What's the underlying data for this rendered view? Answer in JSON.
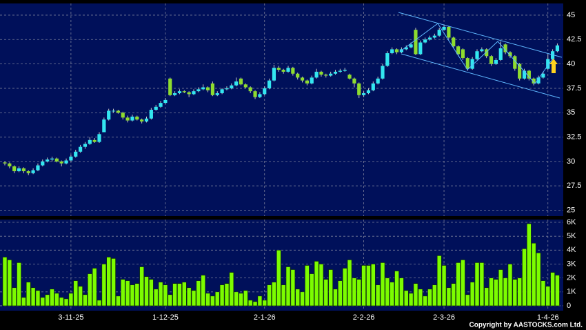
{
  "chart_data": {
    "type": "candlestick",
    "up_color": "#33e6f0",
    "down_color": "#8edc2e",
    "volume_color": "#7cfc00",
    "ylim": [
      24.4,
      46.2
    ],
    "yticks": [
      25,
      27.5,
      30,
      32.5,
      35,
      37.5,
      40,
      42.5,
      45
    ],
    "volume_ylim": [
      -350,
      6200
    ],
    "volume_yticks": [
      0,
      {
        "value": 1000,
        "label": "1K"
      },
      {
        "value": 2000,
        "label": "2K"
      },
      {
        "value": 3000,
        "label": "3K"
      },
      {
        "value": 4000,
        "label": "4K"
      },
      {
        "value": 5000,
        "label": "5K"
      },
      {
        "value": 6000,
        "label": "6K"
      }
    ],
    "grid": true,
    "categories": [
      null,
      null,
      null,
      null,
      null,
      null,
      null,
      null,
      null,
      null,
      null,
      null,
      null,
      null,
      "3-11-25",
      null,
      null,
      null,
      null,
      null,
      null,
      null,
      null,
      null,
      null,
      null,
      null,
      null,
      null,
      null,
      null,
      null,
      null,
      null,
      "1-12-25",
      null,
      null,
      null,
      null,
      null,
      null,
      null,
      null,
      null,
      null,
      null,
      null,
      null,
      null,
      null,
      null,
      null,
      null,
      null,
      null,
      "2-1-26",
      null,
      null,
      null,
      null,
      null,
      null,
      null,
      null,
      null,
      null,
      null,
      null,
      null,
      null,
      null,
      null,
      null,
      null,
      null,
      null,
      "2-2-26",
      null,
      null,
      null,
      null,
      null,
      null,
      null,
      null,
      null,
      null,
      null,
      null,
      null,
      null,
      null,
      null,
      "2-3-26",
      null,
      null,
      null,
      null,
      null,
      null,
      null,
      null,
      null,
      null,
      null,
      null,
      null,
      null,
      null,
      null,
      null,
      null,
      null,
      null,
      null,
      "1-4-26",
      null,
      null
    ],
    "ohlc": [
      [
        29.9,
        30.0,
        29.6,
        29.8
      ],
      [
        29.8,
        29.9,
        29.3,
        29.5
      ],
      [
        29.5,
        29.6,
        28.8,
        29.0
      ],
      [
        29.0,
        29.5,
        28.9,
        29.3
      ],
      [
        29.3,
        29.4,
        28.8,
        29.0
      ],
      [
        29.0,
        29.1,
        28.6,
        28.8
      ],
      [
        28.8,
        29.3,
        28.7,
        29.1
      ],
      [
        29.1,
        29.8,
        29.0,
        29.6
      ],
      [
        29.6,
        30.2,
        29.5,
        30.0
      ],
      [
        30.0,
        30.4,
        29.9,
        30.2
      ],
      [
        30.2,
        30.5,
        30.0,
        30.3
      ],
      [
        30.3,
        30.4,
        29.9,
        30.0
      ],
      [
        30.0,
        30.1,
        29.5,
        29.8
      ],
      [
        29.8,
        30.3,
        29.7,
        30.1
      ],
      [
        30.1,
        30.7,
        30.0,
        30.5
      ],
      [
        30.5,
        31.2,
        30.4,
        31.0
      ],
      [
        31.0,
        31.7,
        30.9,
        31.5
      ],
      [
        31.5,
        32.0,
        31.3,
        31.8
      ],
      [
        31.8,
        32.5,
        31.7,
        32.2
      ],
      [
        32.2,
        32.4,
        31.9,
        32.0
      ],
      [
        32.0,
        33.0,
        31.9,
        32.8
      ],
      [
        33.0,
        34.5,
        33.0,
        34.3
      ],
      [
        34.3,
        35.4,
        34.2,
        35.2
      ],
      [
        35.2,
        35.4,
        35.0,
        35.2
      ],
      [
        35.2,
        35.3,
        34.9,
        35.0
      ],
      [
        35.0,
        35.1,
        34.3,
        34.5
      ],
      [
        34.5,
        34.7,
        34.0,
        34.2
      ],
      [
        34.2,
        34.8,
        34.1,
        34.6
      ],
      [
        34.6,
        34.7,
        34.2,
        34.3
      ],
      [
        34.3,
        34.4,
        33.9,
        34.1
      ],
      [
        34.1,
        34.6,
        34.0,
        34.4
      ],
      [
        34.4,
        35.5,
        34.3,
        35.3
      ],
      [
        35.3,
        35.8,
        35.2,
        35.6
      ],
      [
        35.6,
        36.2,
        35.5,
        36.0
      ],
      [
        36.0,
        36.5,
        35.9,
        36.3
      ],
      [
        38.5,
        38.6,
        36.7,
        36.8
      ],
      [
        36.8,
        37.2,
        36.7,
        37.0
      ],
      [
        37.0,
        37.4,
        36.9,
        37.2
      ],
      [
        37.2,
        37.3,
        37.0,
        37.1
      ],
      [
        37.1,
        37.2,
        36.6,
        36.9
      ],
      [
        36.9,
        37.4,
        36.8,
        37.2
      ],
      [
        37.2,
        37.6,
        37.1,
        37.4
      ],
      [
        37.4,
        37.9,
        37.3,
        37.6
      ],
      [
        37.6,
        37.7,
        37.1,
        37.3
      ],
      [
        38.0,
        38.2,
        36.7,
        36.8
      ],
      [
        36.8,
        37.2,
        36.7,
        37.0
      ],
      [
        37.0,
        37.5,
        36.9,
        37.4
      ],
      [
        37.4,
        37.7,
        37.3,
        37.5
      ],
      [
        37.5,
        38.0,
        37.4,
        37.8
      ],
      [
        37.8,
        38.6,
        37.7,
        38.2
      ],
      [
        38.5,
        38.6,
        37.8,
        37.9
      ],
      [
        37.9,
        38.0,
        37.5,
        37.6
      ],
      [
        37.6,
        37.7,
        37.0,
        37.2
      ],
      [
        37.2,
        37.3,
        36.4,
        36.6
      ],
      [
        36.6,
        37.1,
        36.5,
        36.9
      ],
      [
        36.9,
        37.7,
        36.8,
        37.5
      ],
      [
        37.5,
        38.5,
        37.4,
        38.3
      ],
      [
        38.3,
        39.9,
        38.2,
        39.6
      ],
      [
        39.6,
        39.8,
        39.2,
        39.4
      ],
      [
        39.4,
        39.5,
        39.0,
        39.2
      ],
      [
        39.2,
        39.8,
        39.1,
        39.6
      ],
      [
        39.6,
        39.7,
        38.8,
        39.0
      ],
      [
        39.0,
        39.1,
        38.4,
        38.6
      ],
      [
        38.6,
        38.7,
        38.1,
        38.3
      ],
      [
        38.3,
        38.4,
        37.8,
        38.0
      ],
      [
        38.0,
        38.8,
        37.9,
        38.6
      ],
      [
        38.6,
        39.5,
        38.5,
        39.2
      ],
      [
        39.2,
        39.3,
        38.7,
        38.9
      ],
      [
        38.9,
        39.0,
        38.6,
        38.8
      ],
      [
        38.8,
        39.2,
        38.7,
        39.0
      ],
      [
        39.0,
        39.4,
        38.9,
        39.2
      ],
      [
        39.2,
        39.5,
        39.1,
        39.3
      ],
      [
        39.3,
        39.6,
        39.2,
        39.4
      ],
      [
        38.9,
        39.0,
        38.4,
        38.5
      ],
      [
        38.5,
        38.6,
        37.6,
        38.0
      ],
      [
        38.0,
        38.1,
        36.5,
        36.8
      ],
      [
        36.8,
        37.2,
        36.6,
        37.0
      ],
      [
        37.0,
        37.5,
        36.9,
        37.3
      ],
      [
        37.3,
        38.2,
        37.2,
        38.0
      ],
      [
        38.0,
        38.7,
        37.9,
        38.5
      ],
      [
        38.5,
        40.0,
        38.4,
        39.8
      ],
      [
        39.8,
        41.3,
        39.7,
        41.1
      ],
      [
        41.1,
        41.7,
        41.0,
        41.5
      ],
      [
        41.5,
        41.6,
        41.0,
        41.2
      ],
      [
        41.2,
        41.7,
        41.1,
        41.5
      ],
      [
        41.5,
        41.9,
        41.4,
        41.7
      ],
      [
        41.7,
        42.2,
        41.6,
        42.0
      ],
      [
        43.5,
        43.7,
        40.9,
        41.0
      ],
      [
        41.0,
        42.4,
        40.9,
        42.2
      ],
      [
        42.2,
        42.7,
        42.1,
        42.5
      ],
      [
        42.5,
        42.9,
        42.4,
        42.7
      ],
      [
        42.7,
        43.1,
        42.6,
        42.9
      ],
      [
        42.9,
        43.7,
        42.8,
        43.5
      ],
      [
        43.5,
        44.0,
        43.4,
        43.8
      ],
      [
        43.8,
        43.9,
        42.5,
        42.7
      ],
      [
        42.7,
        42.8,
        41.6,
        41.8
      ],
      [
        41.8,
        41.9,
        40.8,
        41.0
      ],
      [
        41.5,
        41.6,
        40.4,
        40.6
      ],
      [
        40.6,
        40.7,
        39.3,
        39.5
      ],
      [
        39.5,
        40.7,
        39.4,
        40.5
      ],
      [
        40.5,
        41.5,
        40.4,
        41.3
      ],
      [
        41.3,
        41.7,
        41.2,
        41.5
      ],
      [
        41.5,
        41.6,
        40.6,
        40.8
      ],
      [
        40.8,
        40.9,
        39.8,
        40.0
      ],
      [
        40.0,
        40.6,
        39.9,
        40.4
      ],
      [
        40.4,
        42.3,
        40.3,
        41.6
      ],
      [
        42.0,
        42.1,
        41.0,
        41.2
      ],
      [
        41.2,
        41.3,
        40.6,
        40.8
      ],
      [
        40.8,
        40.9,
        39.3,
        39.5
      ],
      [
        40.0,
        40.1,
        38.3,
        38.5
      ],
      [
        38.5,
        39.5,
        38.4,
        39.3
      ],
      [
        39.3,
        39.4,
        38.3,
        38.5
      ],
      [
        38.5,
        38.6,
        37.8,
        38.0
      ],
      [
        38.0,
        38.8,
        37.9,
        38.6
      ],
      [
        38.6,
        39.2,
        38.5,
        39.0
      ],
      [
        39.5,
        41.0,
        39.4,
        40.5
      ],
      [
        40.5,
        41.5,
        40.4,
        41.3
      ],
      [
        41.3,
        42.1,
        41.2,
        41.9
      ]
    ],
    "volume": [
      3500,
      3300,
      1300,
      3100,
      600,
      1700,
      1300,
      1100,
      600,
      800,
      1200,
      900,
      600,
      500,
      900,
      1800,
      1400,
      800,
      2300,
      2700,
      400,
      3000,
      3500,
      3400,
      700,
      1900,
      1800,
      1500,
      1600,
      2800,
      2100,
      1900,
      1200,
      1700,
      1500,
      800,
      1600,
      1600,
      1700,
      1300,
      1100,
      1800,
      2200,
      900,
      700,
      1000,
      1500,
      1600,
      2400,
      1000,
      900,
      1100,
      400,
      300,
      700,
      400,
      1500,
      1700,
      4000,
      1500,
      2800,
      2600,
      1200,
      1000,
      2900,
      2300,
      3200,
      3000,
      1900,
      2600,
      1200,
      1800,
      2700,
      3300,
      2000,
      1900,
      2900,
      2900,
      3000,
      1500,
      3100,
      2000,
      1700,
      2500,
      2000,
      1100,
      900,
      1600,
      1200,
      700,
      1200,
      1500,
      3600,
      2900,
      1300,
      1600,
      3100,
      3300,
      800,
      1700,
      3100,
      3100,
      1300,
      2000,
      1900,
      2600,
      2000,
      3000,
      1900,
      2000,
      4100,
      5900,
      4500,
      3800,
      1800,
      1400,
      2400,
      2200
    ],
    "copyright": "Copyright by AASTOCKS.com Ltd."
  }
}
